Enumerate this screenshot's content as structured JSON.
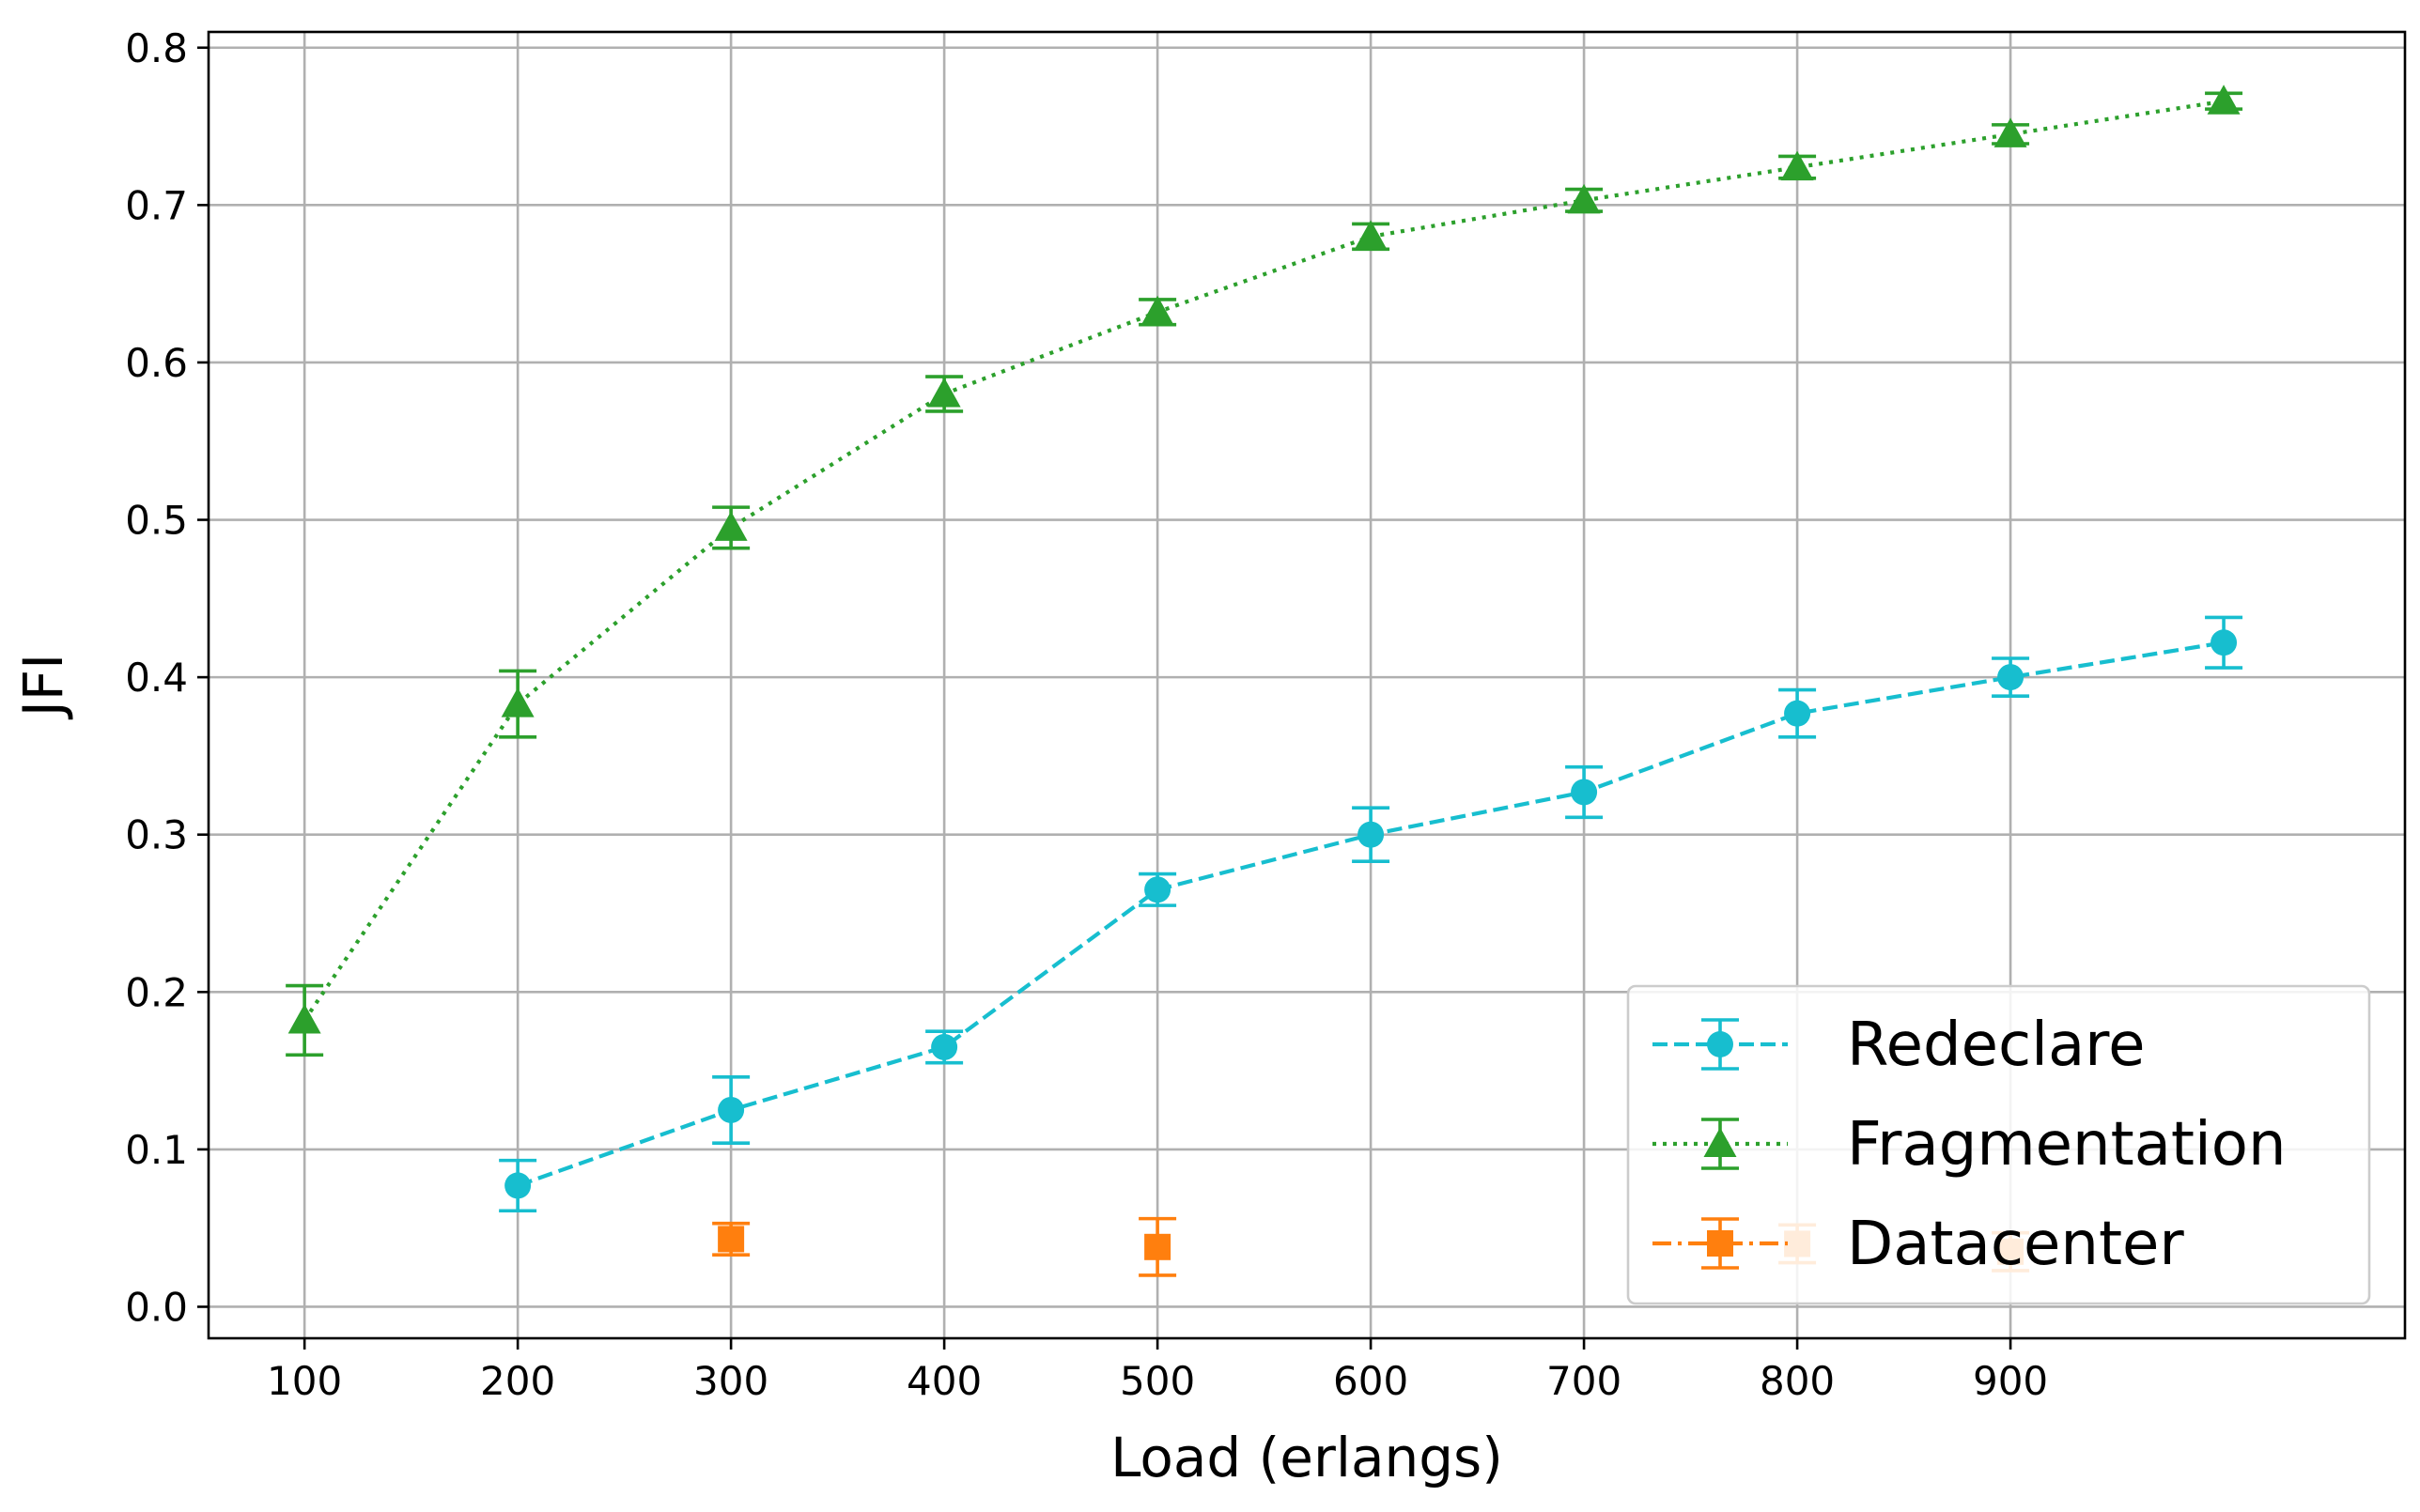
{
  "chart_data": {
    "type": "line",
    "title": "",
    "xlabel": "Load (erlangs)",
    "ylabel": "JFI",
    "xlim": [
      55,
      1085
    ],
    "ylim": [
      -0.02,
      0.81
    ],
    "x_ticks": [
      100,
      200,
      300,
      400,
      500,
      600,
      700,
      800,
      900
    ],
    "x_tick_labels": [
      "100",
      "200",
      "300",
      "400",
      "500",
      "600",
      "700",
      "800",
      "900"
    ],
    "y_ticks": [
      0.0,
      0.1,
      0.2,
      0.3,
      0.4,
      0.5,
      0.6,
      0.7,
      0.8
    ],
    "y_tick_labels": [
      "0.0",
      "0.1",
      "0.2",
      "0.3",
      "0.4",
      "0.5",
      "0.6",
      "0.7",
      "0.8"
    ],
    "grid": true,
    "legend_position": "lower-right",
    "series": [
      {
        "name": "Redeclare",
        "color": "#17becf",
        "marker": "circle",
        "linestyle": "dashed",
        "x": [
          200,
          300,
          400,
          500,
          600,
          700,
          800,
          900,
          1000
        ],
        "y": [
          0.077,
          0.125,
          0.165,
          0.265,
          0.3,
          0.327,
          0.377,
          0.4,
          0.422
        ],
        "error": [
          0.016,
          0.021,
          0.01,
          0.01,
          0.017,
          0.016,
          0.015,
          0.012,
          0.016
        ]
      },
      {
        "name": "Fragmentation",
        "color": "#2ca02c",
        "marker": "triangle",
        "linestyle": "dotted",
        "x": [
          100,
          200,
          300,
          400,
          500,
          600,
          700,
          800,
          900,
          1000
        ],
        "y": [
          0.182,
          0.383,
          0.495,
          0.58,
          0.632,
          0.68,
          0.703,
          0.724,
          0.745,
          0.766
        ],
        "error": [
          0.022,
          0.021,
          0.013,
          0.011,
          0.008,
          0.008,
          0.007,
          0.007,
          0.006,
          0.005
        ]
      },
      {
        "name": "Datacenter",
        "color": "#ff7f0e",
        "marker": "square",
        "linestyle": "dashdot",
        "x": [
          300,
          500,
          800,
          900
        ],
        "y": [
          0.043,
          0.038,
          0.04,
          0.035
        ],
        "error": [
          0.01,
          0.018,
          0.012,
          0.012
        ]
      }
    ]
  }
}
